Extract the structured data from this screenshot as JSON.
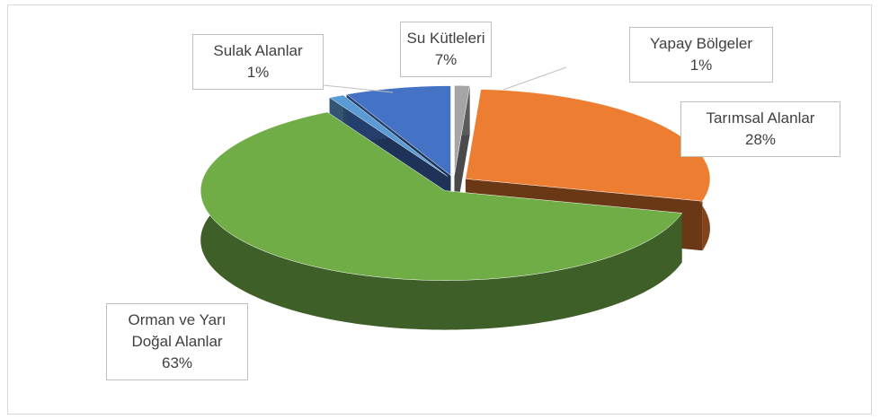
{
  "chart_data": {
    "type": "pie",
    "categories": [
      "Yapay Bölgeler",
      "Tarımsal Alanlar",
      "Orman ve Yarı Doğal Alanlar",
      "Sulak Alanlar",
      "Su Kütleleri"
    ],
    "values": [
      1,
      28,
      63,
      1,
      7
    ],
    "value_labels": [
      "1%",
      "28%",
      "63%",
      "1%",
      "7%"
    ],
    "colors": [
      "#a5a5a5",
      "#ed7d31",
      "#70ad47",
      "#5b9bd5",
      "#4472c4"
    ]
  }
}
